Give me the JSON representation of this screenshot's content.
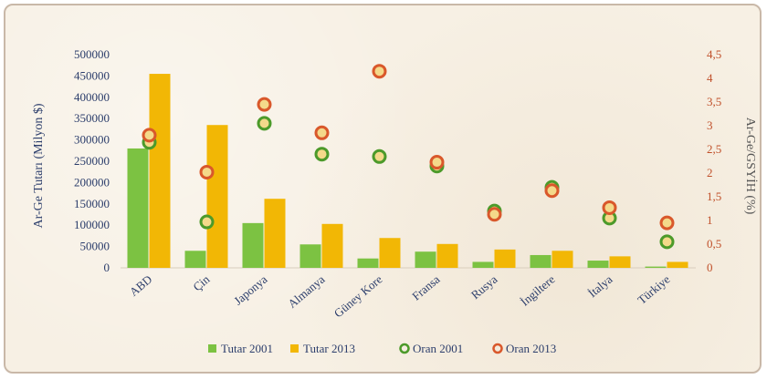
{
  "chart_data": {
    "type": "bar",
    "categories": [
      "ABD",
      "Çin",
      "Japonya",
      "Almanya",
      "Güney Kore",
      "Fransa",
      "Rusya",
      "İngiltere",
      "İtalya",
      "Türkiye"
    ],
    "series": [
      {
        "name": "Tutar 2001",
        "kind": "bar",
        "axis": "left",
        "color": "#7cc242",
        "values": [
          280000,
          40000,
          105000,
          55000,
          22000,
          38000,
          14000,
          30000,
          17000,
          3000
        ]
      },
      {
        "name": "Tutar 2013",
        "kind": "bar",
        "axis": "left",
        "color": "#f2b705",
        "values": [
          455000,
          335000,
          162000,
          103000,
          70000,
          56000,
          43000,
          40000,
          27000,
          14000
        ]
      },
      {
        "name": "Oran 2001",
        "kind": "marker",
        "axis": "right",
        "color": "#4c9a2a",
        "values": [
          2.65,
          0.97,
          3.05,
          2.4,
          2.35,
          2.15,
          1.2,
          1.7,
          1.05,
          0.55
        ]
      },
      {
        "name": "Oran 2013",
        "kind": "marker",
        "axis": "right",
        "color": "#d9582b",
        "values": [
          2.8,
          2.02,
          3.45,
          2.85,
          4.15,
          2.23,
          1.13,
          1.63,
          1.27,
          0.95
        ]
      }
    ],
    "y_left": {
      "label": "Ar-Ge Tutarı (Milyon $)",
      "range": [
        0,
        500000
      ],
      "ticks": [
        "0",
        "50000",
        "100000",
        "150000",
        "200000",
        "250000",
        "300000",
        "350000",
        "400000",
        "450000",
        "500000"
      ]
    },
    "y_right": {
      "label": "Ar-Ge/GSYİH (%)",
      "range": [
        0,
        4.5
      ],
      "ticks": [
        "0",
        "0,5",
        "1",
        "1,5",
        "2",
        "2,5",
        "3",
        "3,5",
        "4",
        "4,5"
      ]
    },
    "legend_position": "bottom",
    "grid": false
  }
}
